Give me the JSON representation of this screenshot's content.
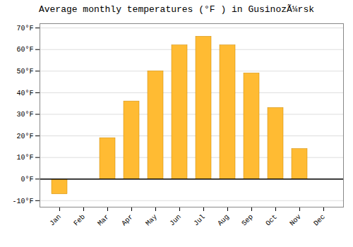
{
  "chart_data": {
    "type": "bar",
    "title": "Average monthly temperatures (°F ) in GusinozÃ¼rsk",
    "categories": [
      "Jan",
      "Feb",
      "Mar",
      "Apr",
      "May",
      "Jun",
      "Jul",
      "Aug",
      "Sep",
      "Oct",
      "Nov",
      "Dec"
    ],
    "values": [
      -7,
      0,
      19,
      36,
      50,
      62,
      66,
      62,
      49,
      33,
      14,
      0
    ],
    "color": "#FFBB33",
    "ylim": [
      -13,
      72
    ],
    "yticks": [
      {
        "value": -10,
        "label": "-10°F"
      },
      {
        "value": 0,
        "label": "0°F"
      },
      {
        "value": 10,
        "label": "10°F"
      },
      {
        "value": 20,
        "label": "20°F"
      },
      {
        "value": 30,
        "label": "30°F"
      },
      {
        "value": 40,
        "label": "40°F"
      },
      {
        "value": 50,
        "label": "50°F"
      },
      {
        "value": 60,
        "label": "60°F"
      },
      {
        "value": 70,
        "label": "70°F"
      }
    ],
    "grid": true
  }
}
